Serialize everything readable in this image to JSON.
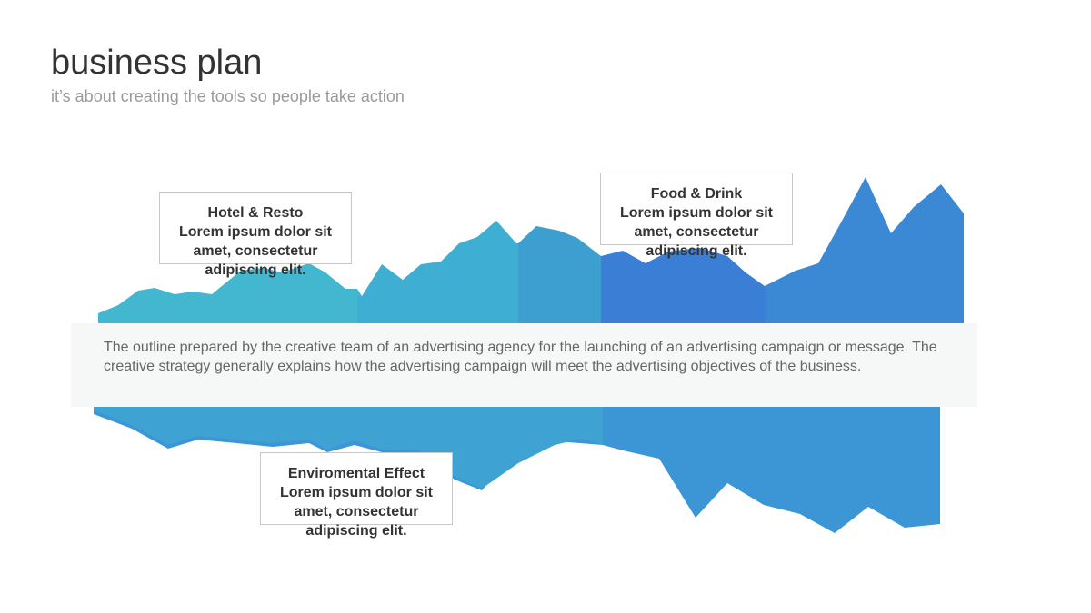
{
  "title": "business plan",
  "subtitle": "it’s about creating the tools so people take action",
  "description": "The outline prepared by the creative team of an advertising agency for the launching of an advertising campaign or message. The creative strategy generally explains how the advertising campaign will meet the advertising objectives of the business.",
  "callouts": [
    {
      "heading": "Hotel & Resto",
      "body": "Lorem ipsum dolor sit amet, consectetur adipiscing elit."
    },
    {
      "heading": "Food & Drink",
      "body": "Lorem ipsum dolor sit amet, consectetur adipiscing elit."
    },
    {
      "heading": "Enviromental Effect",
      "body": "Lorem ipsum dolor sit amet, consectetur adipiscing elit."
    }
  ],
  "colors": {
    "teal": "#42b7cf",
    "cyan_blue": "#3eaed2",
    "mid_blue": "#3c9fd0",
    "royal_blue": "#3a7fd5",
    "blue": "#3b88d4",
    "band": "#f6f7f7"
  }
}
